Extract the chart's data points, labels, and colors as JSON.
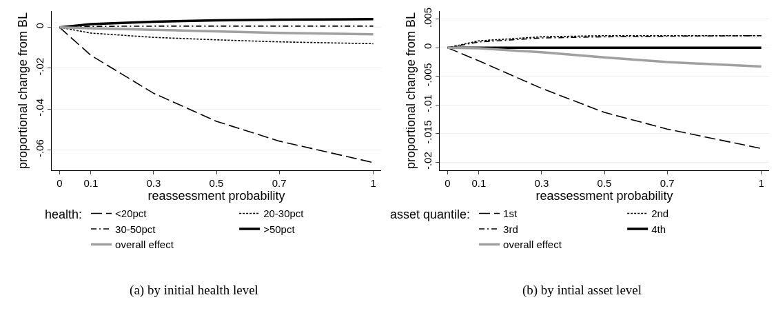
{
  "chart_data": [
    {
      "type": "line",
      "title": "(a) by initial health level",
      "xlabel": "reassessment probability",
      "ylabel": "proportional change from BL",
      "legend_title": "health:",
      "legend": "bottom",
      "grid": "y",
      "marker": "none",
      "x": [
        0,
        0.1,
        0.3,
        0.5,
        0.7,
        1
      ],
      "xlim": [
        -0.025,
        1.025
      ],
      "xticks": [
        0,
        0.1,
        0.3,
        0.5,
        0.7,
        1
      ],
      "ylim": [
        -0.07,
        0.008
      ],
      "yticks": [
        {
          "value": -0.06,
          "label": "-.06"
        },
        {
          "value": -0.04,
          "label": "-.04"
        },
        {
          "value": -0.02,
          "label": "-.02"
        },
        0
      ],
      "series": [
        {
          "name": "<20pct",
          "color": "#000000",
          "line_style": "dashed",
          "values": [
            0,
            -0.0137,
            -0.0323,
            -0.046,
            -0.0557,
            -0.0662
          ]
        },
        {
          "name": "20-30pct",
          "color": "#000000",
          "line_style": "dotted",
          "values": [
            0,
            -0.0028,
            -0.0049,
            -0.0061,
            -0.0071,
            -0.008
          ]
        },
        {
          "name": "30-50pct",
          "color": "#000000",
          "line_style": "dashdot",
          "values": [
            0,
            0.0005,
            0.0006,
            0.0006,
            0.0006,
            0.0006
          ]
        },
        {
          "name": ">50pct",
          "color": "#000000",
          "line_style": "solid",
          "values": [
            0,
            0.0016,
            0.0028,
            0.0034,
            0.0038,
            0.004
          ]
        },
        {
          "name": "overall effect",
          "color": "#a0a0a0",
          "line_style": "solid",
          "values": [
            0,
            -0.0004,
            -0.0012,
            -0.002,
            -0.0027,
            -0.0034
          ]
        }
      ]
    },
    {
      "type": "line",
      "title": "(b) by intial asset level",
      "xlabel": "reassessment probability",
      "ylabel": "proportional change from BL",
      "legend_title": "asset quantile:",
      "legend": "bottom",
      "grid": "y",
      "marker": "none",
      "x": [
        0,
        0.1,
        0.3,
        0.5,
        0.7,
        1
      ],
      "xlim": [
        -0.025,
        1.025
      ],
      "xticks": [
        0,
        0.1,
        0.3,
        0.5,
        0.7,
        1
      ],
      "ylim": [
        -0.0214,
        0.0064
      ],
      "yticks": [
        {
          "value": -0.02,
          "label": "-.02"
        },
        {
          "value": -0.015,
          "label": "-.015"
        },
        {
          "value": -0.01,
          "label": "-.01"
        },
        {
          "value": -0.005,
          "label": "-.005"
        },
        0,
        {
          "value": 0.005,
          "label": ".005"
        }
      ],
      "series": [
        {
          "name": "1st",
          "color": "#000000",
          "line_style": "dashed",
          "values": [
            0,
            -0.0023,
            -0.0071,
            -0.0113,
            -0.0142,
            -0.0176
          ]
        },
        {
          "name": "2nd",
          "color": "#000000",
          "line_style": "dotted",
          "values": [
            0,
            0.0012,
            0.0019,
            0.0021,
            0.0021,
            0.0021
          ]
        },
        {
          "name": "3rd",
          "color": "#000000",
          "line_style": "dashdot",
          "values": [
            0,
            0.001,
            0.0017,
            0.0019,
            0.002,
            0.0021
          ]
        },
        {
          "name": "4th",
          "color": "#000000",
          "line_style": "solid",
          "values": [
            0,
            0,
            0,
            0,
            0,
            0
          ]
        },
        {
          "name": "overall effect",
          "color": "#a0a0a0",
          "line_style": "solid",
          "values": [
            0,
            -0.0001,
            -0.0008,
            -0.0017,
            -0.0025,
            -0.0033
          ]
        }
      ]
    }
  ]
}
